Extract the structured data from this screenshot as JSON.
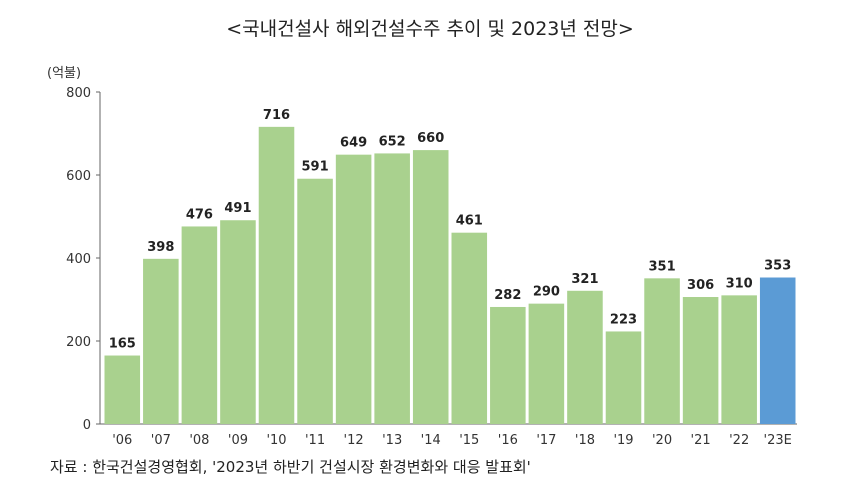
{
  "chart_data": {
    "type": "bar",
    "title": "<국내건설사 해외건설수주 추이 및 2023년 전망>",
    "unit": "(억불)",
    "categories": [
      "'06",
      "'07",
      "'08",
      "'09",
      "'10",
      "'11",
      "'12",
      "'13",
      "'14",
      "'15",
      "'16",
      "'17",
      "'18",
      "'19",
      "'20",
      "'21",
      "'22",
      "'23E"
    ],
    "values": [
      165,
      398,
      476,
      491,
      716,
      591,
      649,
      652,
      660,
      461,
      282,
      290,
      321,
      223,
      351,
      306,
      310,
      353
    ],
    "highlight_index": 17,
    "ylim": [
      0,
      800
    ],
    "yticks": [
      "0",
      "200",
      "400",
      "600",
      "800"
    ],
    "grid": false,
    "colors": {
      "bar": "#a9d18e",
      "highlight": "#5b9bd5"
    }
  },
  "source": "자료 : 한국건설경영협회, '2023년 하반기 건설시장 환경변화와 대응 발표회'"
}
